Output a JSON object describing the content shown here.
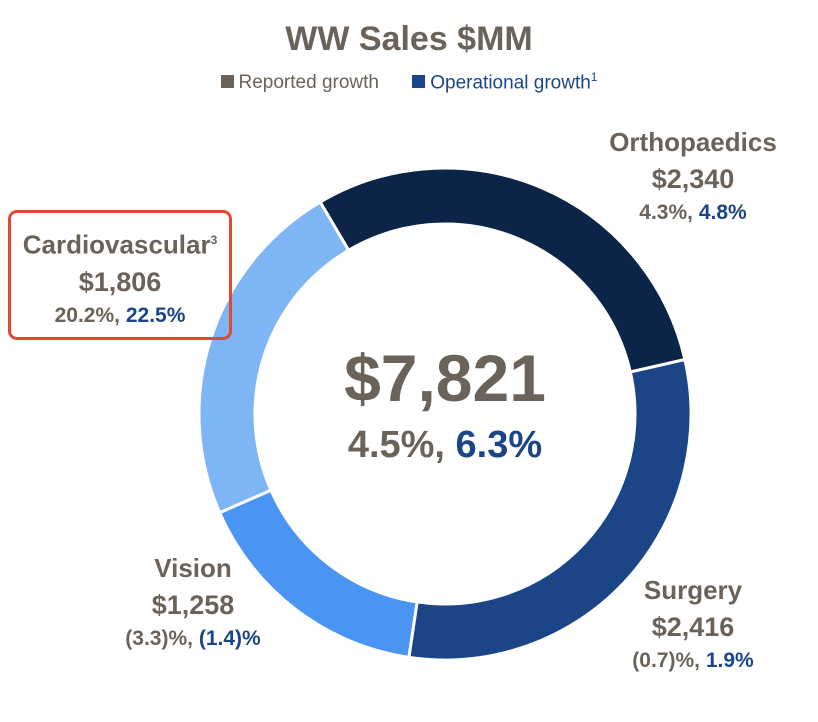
{
  "title": "WW Sales $MM",
  "legend": {
    "reported": {
      "label": "Reported growth",
      "color": "#6b6359"
    },
    "operational": {
      "label": "Operational growth",
      "sup": "1",
      "color": "#1c4587"
    }
  },
  "center": {
    "value": "$7,821",
    "reported_growth": "4.5%,",
    "operational_growth": "6.3%"
  },
  "chart_data": {
    "type": "pie",
    "title": "WW Sales $MM",
    "total": 7821,
    "series": [
      {
        "name": "Orthopaedics",
        "value": 2340,
        "value_label": "$2,340",
        "reported_growth": "4.3%,",
        "operational_growth": "4.8%",
        "color": "#0b2447"
      },
      {
        "name": "Surgery",
        "value": 2416,
        "value_label": "$2,416",
        "reported_growth": "(0.7)%,",
        "operational_growth": "1.9%",
        "color": "#1c4587"
      },
      {
        "name": "Vision",
        "value": 1258,
        "value_label": "$1,258",
        "reported_growth": "(3.3)%,",
        "operational_growth": "(1.4)%",
        "color": "#4a94f2"
      },
      {
        "name": "Cardiovascular",
        "name_sup": "3",
        "value": 1806,
        "value_label": "$1,806",
        "reported_growth": "20.2%,",
        "operational_growth": "22.5%",
        "color": "#7eb5f5",
        "highlighted": true
      }
    ]
  }
}
